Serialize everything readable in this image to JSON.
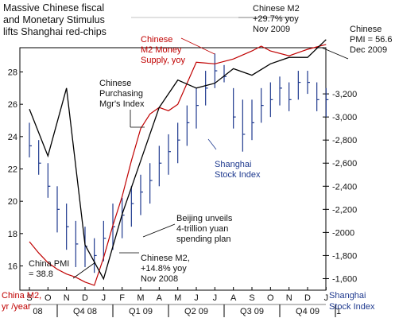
{
  "chart_data": {
    "type": "line",
    "title": "Massive Chinese fiscal and Monetary Stimulus lifts Shanghai red-chips",
    "months": [
      "S",
      "O",
      "N",
      "D",
      "J",
      "F",
      "M",
      "A",
      "M",
      "J",
      "J",
      "A",
      "S",
      "O",
      "N",
      "D",
      "J"
    ],
    "quarters": [
      "08",
      "Q4 08",
      "Q1 09",
      "Q2 09",
      "Q3 09",
      "Q4 09",
      "1"
    ],
    "left_axis": {
      "label": "China M2, yr /year",
      "ticks": [
        16,
        18,
        20,
        22,
        24,
        26,
        28
      ],
      "range": [
        14.5,
        29.5
      ]
    },
    "right_axis": {
      "label": "Shanghai Stock Index",
      "ticks": [
        "1,600",
        "1,800",
        "2000",
        "2,200",
        "2,400",
        "2,600",
        "2,800",
        "3,000",
        "3,200"
      ],
      "range": [
        1500,
        3600
      ]
    },
    "series": [
      {
        "name": "Chinese M2 Money Supply, yoy",
        "color": "#c00000",
        "x": [
          0,
          0.5,
          1,
          1.5,
          2,
          2.5,
          3,
          3.5,
          4,
          4.5,
          5,
          5.5,
          6,
          6.5,
          7,
          7.5,
          8,
          9,
          10,
          11,
          12,
          12.5,
          13,
          14,
          15,
          16
        ],
        "y": [
          17.5,
          16.8,
          16.2,
          15.8,
          15.5,
          15.3,
          15.0,
          14.8,
          16.5,
          18.5,
          20.3,
          22.5,
          24.5,
          25.4,
          25.8,
          25.6,
          26.0,
          28.6,
          28.5,
          28.8,
          29.3,
          29.6,
          29.3,
          29.0,
          29.4,
          29.7
        ]
      },
      {
        "name": "Chinese Purchasing Mgr's Index",
        "color": "#000000",
        "x": [
          0,
          1,
          2,
          3,
          4,
          5,
          6,
          7,
          8,
          9,
          10,
          11,
          12,
          13,
          14,
          15,
          16
        ],
        "y": [
          25.7,
          22.8,
          27.0,
          17.3,
          15.2,
          19.2,
          22.5,
          25.8,
          27.5,
          27.0,
          27.3,
          28.2,
          27.8,
          28.5,
          28.9,
          28.9,
          30.0
        ]
      }
    ],
    "bar_series": {
      "name": "Shanghai Stock Index",
      "color": "#1f3a8f",
      "x": [
        0,
        0.5,
        1,
        1.5,
        2,
        2.5,
        3,
        3.5,
        4,
        4.5,
        5,
        5.5,
        6,
        6.5,
        7,
        7.5,
        8,
        8.5,
        9,
        9.5,
        10,
        10.5,
        11,
        11.5,
        12,
        12.5,
        13,
        13.5,
        14,
        14.5,
        15,
        15.5,
        16
      ],
      "low": [
        2650,
        2500,
        2300,
        2000,
        1850,
        1700,
        1700,
        1650,
        1750,
        1850,
        1950,
        2050,
        2150,
        2250,
        2400,
        2500,
        2600,
        2750,
        2900,
        3100,
        3250,
        3300,
        2900,
        2700,
        2800,
        2950,
        3000,
        3100,
        3050,
        3150,
        3200,
        3050,
        3000
      ],
      "high": [
        2950,
        2800,
        2600,
        2400,
        2250,
        2100,
        2050,
        1950,
        2100,
        2250,
        2300,
        2400,
        2500,
        2600,
        2750,
        2850,
        2950,
        3100,
        3250,
        3400,
        3550,
        3450,
        3250,
        3150,
        3150,
        3250,
        3300,
        3350,
        3300,
        3400,
        3400,
        3300,
        3250
      ],
      "close": [
        2750,
        2600,
        2400,
        2200,
        2050,
        1900,
        1880,
        1800,
        1950,
        2050,
        2150,
        2250,
        2350,
        2450,
        2600,
        2700,
        2800,
        2950,
        3100,
        3250,
        3400,
        3350,
        3000,
        2850,
        2950,
        3100,
        3150,
        3250,
        3150,
        3300,
        3300,
        3150,
        3150
      ]
    },
    "annotations": {
      "m2_label": "Chinese M2 Money Supply, yoy",
      "m2_top": "Chinese M2 +29.7% yoy Nov 2009",
      "pmi_label": "Chinese Purchasing Mgr's Index",
      "pmi_top": "Chinese PMI = 56.6 Dec 2009",
      "shanghai_label": "Shanghai Stock Index",
      "beijing": "Beijing unveils 4-trillion yuan spending plan",
      "m2_low": "Chinese M2, +14.8% yoy Nov 2008",
      "pmi_low": "China PMI = 38.8"
    }
  }
}
